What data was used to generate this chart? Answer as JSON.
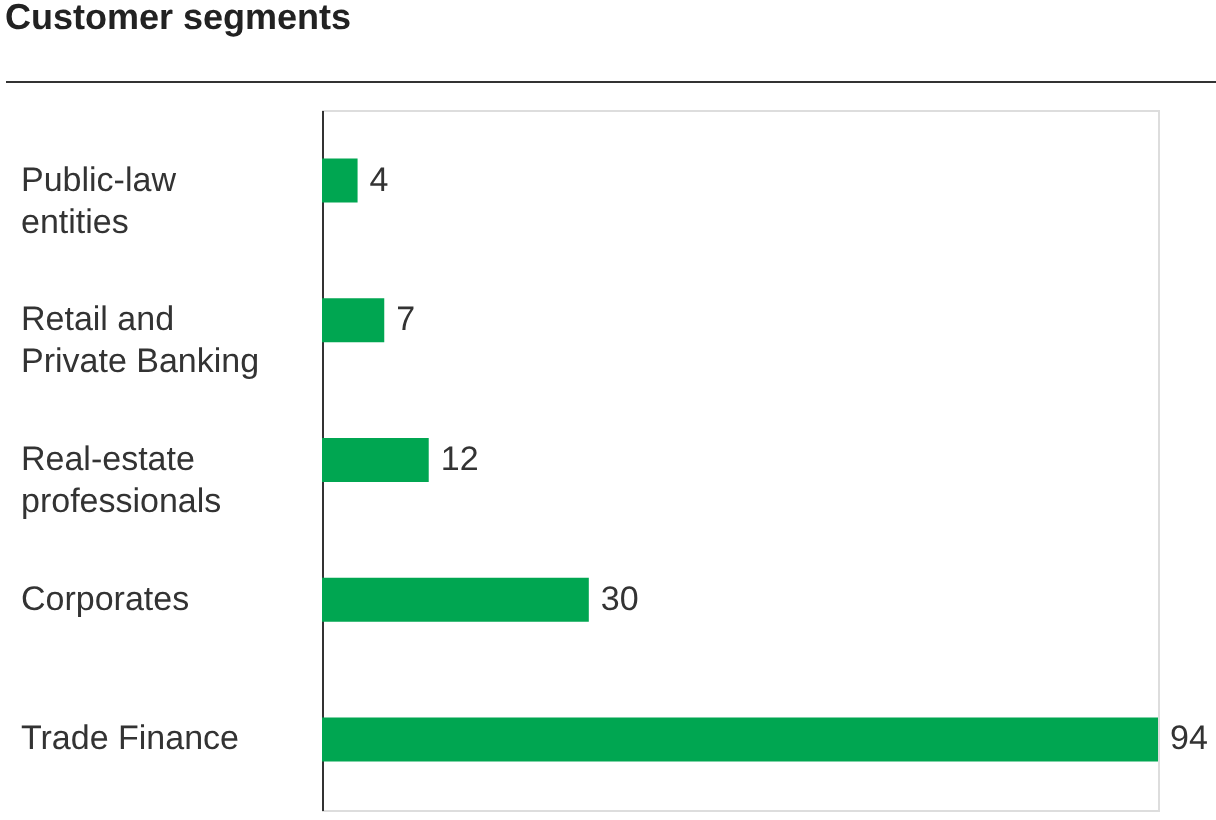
{
  "chart_data": {
    "type": "bar",
    "orientation": "horizontal",
    "title": "Customer segments",
    "categories": [
      "Public-law\nentities",
      "Retail and\nPrivate Banking",
      "Real-estate\nprofessionals",
      "Corporates",
      "Trade Finance"
    ],
    "values": [
      4,
      7,
      12,
      30,
      94
    ],
    "color": "#00a651",
    "data_labels": true
  }
}
